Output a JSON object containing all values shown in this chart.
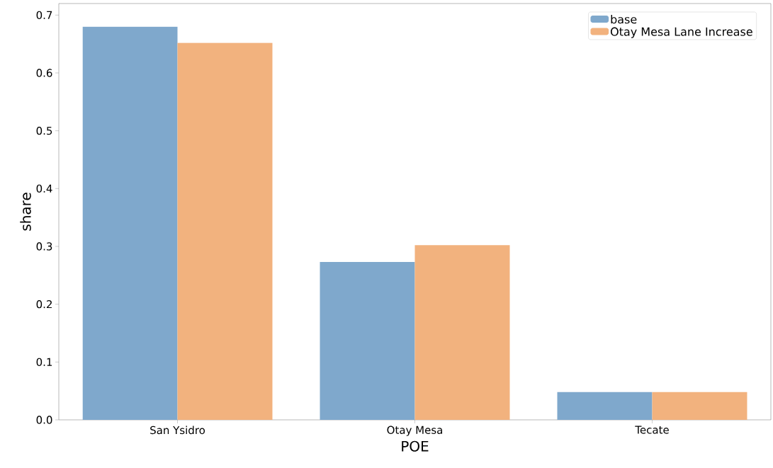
{
  "chart_data": {
    "type": "bar",
    "xlabel": "POE",
    "ylabel": "share",
    "categories": [
      "San Ysidro",
      "Otay Mesa",
      "Tecate"
    ],
    "series": [
      {
        "name": "base",
        "color": "#7fa8cc",
        "values": [
          0.68,
          0.273,
          0.048
        ]
      },
      {
        "name": "Otay Mesa Lane Increase",
        "color": "#f2b27e",
        "values": [
          0.652,
          0.302,
          0.048
        ]
      }
    ],
    "ylim": [
      0,
      0.72
    ],
    "yticks": [
      {
        "value": 0,
        "label": "0.0"
      },
      0.1,
      0.2,
      0.3,
      0.4,
      0.5,
      0.6,
      0.7
    ],
    "grid": false,
    "legend": "top right"
  }
}
